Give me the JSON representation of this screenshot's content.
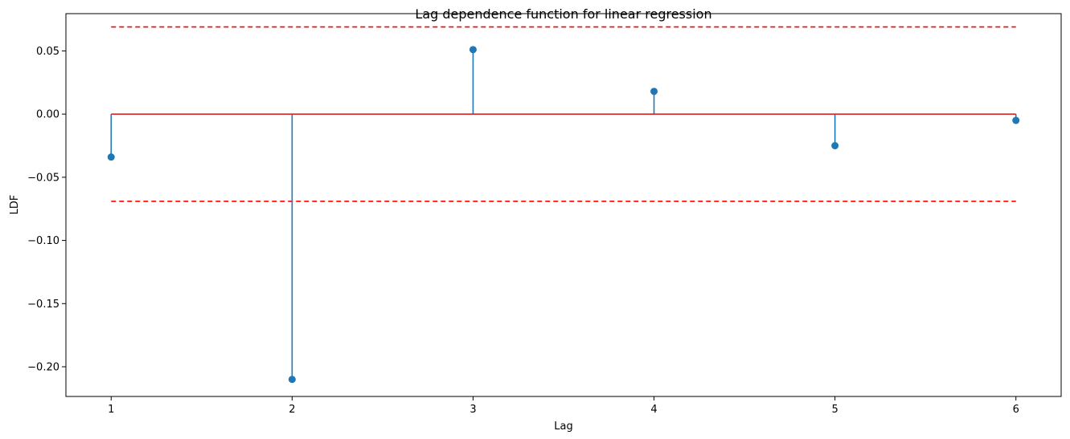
{
  "chart_data": {
    "type": "stem",
    "title": "Lag dependence function for linear regression",
    "xlabel": "Lag",
    "ylabel": "LDF",
    "x": [
      1,
      2,
      3,
      4,
      5,
      6
    ],
    "values": [
      -0.034,
      -0.21,
      0.051,
      0.018,
      -0.025,
      -0.005
    ],
    "confidence_bounds": [
      0.069,
      -0.069
    ],
    "baseline": 0.0,
    "xlim": [
      0.75,
      6.25
    ],
    "ylim": [
      -0.2235,
      0.0795
    ],
    "xticks": [
      "1",
      "2",
      "3",
      "4",
      "5",
      "6"
    ],
    "yticks": [
      0.05,
      0.0,
      -0.05,
      -0.1,
      -0.15,
      -0.2
    ],
    "ytick_labels": [
      "0.05",
      "0.00",
      "−0.05",
      "−0.10",
      "−0.15",
      "−0.20"
    ],
    "grid": false,
    "colors": {
      "stem": "#1f77b4",
      "marker": "#1f77b4",
      "baseline": "#d62728",
      "bounds": "#ff0000"
    }
  }
}
